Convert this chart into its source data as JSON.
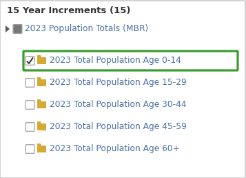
{
  "title": "15 Year Increments (15)",
  "parent_label": "2023 Population Totals (MBR)",
  "items": [
    {
      "label": "2023 Total Population Age 0-14",
      "checked": true,
      "highlighted": true
    },
    {
      "label": "2023 Total Population Age 15-29",
      "checked": false,
      "highlighted": false
    },
    {
      "label": "2023 Total Population Age 30-44",
      "checked": false,
      "highlighted": false
    },
    {
      "label": "2023 Total Population Age 45-59",
      "checked": false,
      "highlighted": false
    },
    {
      "label": "2023 Total Population Age 60+",
      "checked": false,
      "highlighted": false
    }
  ],
  "bg_color": "#ffffff",
  "border_color": "#c0c0c0",
  "title_color": "#333333",
  "label_color": "#4a6fa5",
  "folder_color": "#d4aa35",
  "highlight_border": "#3a9c2e",
  "checkbox_border": "#aaaaaa",
  "parent_checkbox_fill": "#777777",
  "arrow_color": "#555555",
  "title_fontsize": 9.5,
  "item_fontsize": 8.8,
  "parent_fontsize": 8.8,
  "fig_width": 3.57,
  "fig_height": 2.58,
  "dpi": 100
}
